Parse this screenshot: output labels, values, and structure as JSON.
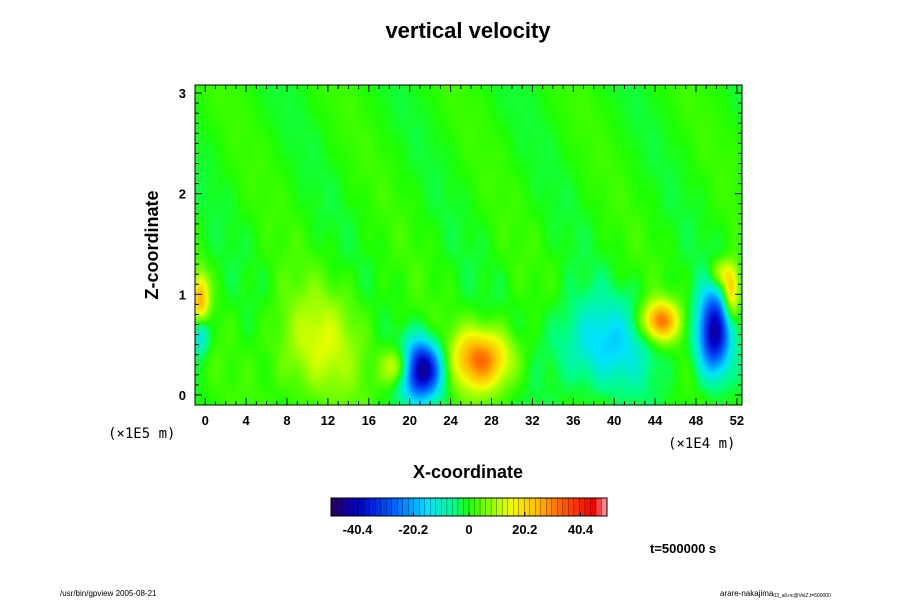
{
  "chart_data": {
    "type": "heatmap",
    "title": "vertical velocity",
    "xlabel": "X-coordinate",
    "ylabel": "Z-coordinate",
    "x_scale_label": "(×1E4 m)",
    "y_scale_label": "(×1E5 m)",
    "xlim": [
      -1,
      52.5
    ],
    "ylim": [
      -0.1,
      3.08
    ],
    "x_ticks": [
      0,
      4,
      8,
      12,
      16,
      20,
      24,
      28,
      32,
      36,
      40,
      44,
      48,
      52
    ],
    "y_ticks": [
      0,
      1,
      2,
      3
    ],
    "colorbar": {
      "min": -50,
      "max": 50,
      "ticks": [
        -40.4,
        -20.2,
        0,
        20.2,
        40.4
      ],
      "tick_labels": [
        "-40.4",
        "-20.2",
        "0",
        "20.2",
        "40.4"
      ]
    },
    "annotation": "t=500000 s",
    "field_features": [
      {
        "name": "strong downdraft",
        "x": 21,
        "z": 0.25,
        "rx": 2.2,
        "rz": 0.28,
        "value": -50
      },
      {
        "name": "updraft",
        "x": 27,
        "z": 0.35,
        "rx": 3,
        "rz": 0.3,
        "value": 32
      },
      {
        "name": "updraft",
        "x": 19,
        "z": 0.27,
        "rx": 1.6,
        "rz": 0.2,
        "value": 28
      },
      {
        "name": "warm region",
        "x": 11,
        "z": 0.5,
        "rx": 4.5,
        "rz": 0.55,
        "value": 12
      },
      {
        "name": "updraft",
        "x": 44.5,
        "z": 0.73,
        "rx": 1.8,
        "rz": 0.2,
        "value": 33
      },
      {
        "name": "downdraft",
        "x": 49.8,
        "z": 0.62,
        "rx": 1.6,
        "rz": 0.42,
        "value": -42
      },
      {
        "name": "weak downdraft region",
        "x": 39,
        "z": 0.5,
        "rx": 5,
        "rz": 0.45,
        "value": -15
      },
      {
        "name": "edge updraft",
        "x": -0.5,
        "z": 0.95,
        "rx": 0.8,
        "rz": 0.25,
        "value": 25
      },
      {
        "name": "edge updraft",
        "x": 51.5,
        "z": 1.0,
        "rx": 0.8,
        "rz": 0.25,
        "value": 25
      },
      {
        "name": "edge downdraft",
        "x": -0.5,
        "z": 0.6,
        "rx": 0.8,
        "rz": 0.2,
        "value": -18
      },
      {
        "name": "edge updraft",
        "x": 50.5,
        "z": 1.2,
        "rx": 1.2,
        "rz": 0.15,
        "value": 15
      }
    ]
  },
  "footer": {
    "left": "/usr/bin/gpview 2005-08-21",
    "right_main": "arare-nakajima",
    "right_sub": "03_all.nc@VelZ,t=500000"
  }
}
